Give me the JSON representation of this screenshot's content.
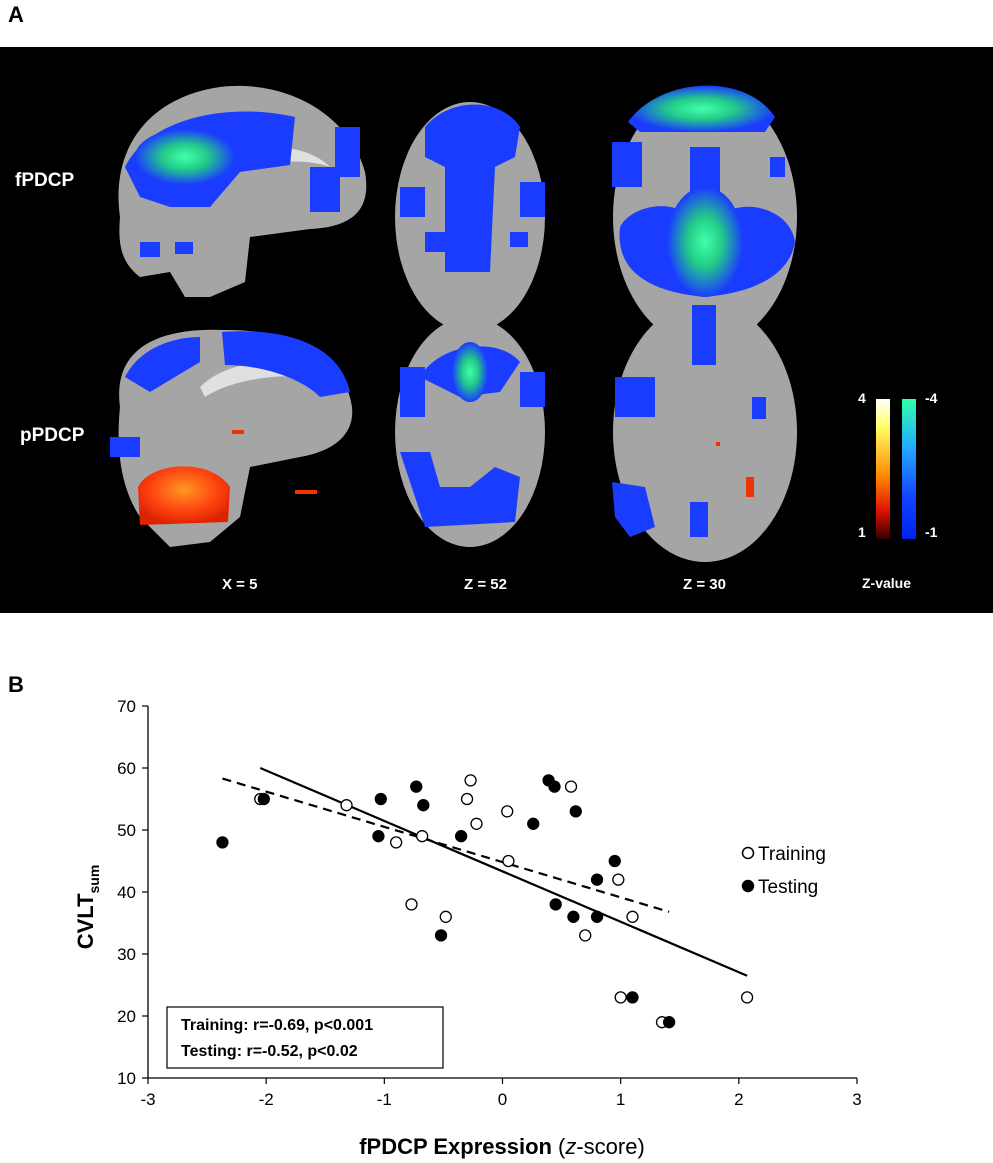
{
  "panel_a": {
    "label": "A",
    "row_labels": [
      "fPDCP",
      "pPDCP"
    ],
    "coord_labels": [
      "X = 5",
      "Z = 52",
      "Z = 30"
    ],
    "colorbar": {
      "pos_max": "4",
      "pos_min": "1",
      "neg_max": "-4",
      "neg_min": "-1",
      "title": "Z-value",
      "pos_colors": [
        "#ffffff",
        "#ffff66",
        "#ff8800",
        "#dd1100",
        "#330000"
      ],
      "neg_colors": [
        "#33ffaa",
        "#22aaff",
        "#1144ff",
        "#0022ee"
      ]
    },
    "colors": {
      "background": "#000000",
      "brain": "#a0a0a0",
      "blue": "#1a3cff",
      "green": "#33ee99",
      "red": "#ee3300"
    }
  },
  "panel_b": {
    "label": "B",
    "legend": {
      "training": "Training",
      "testing": "Testing"
    },
    "stats": [
      "Training: r=-0.69, p<0.001",
      "Testing: r=-0.52, p<0.02"
    ]
  },
  "chart_data": {
    "type": "scatter",
    "xlabel_main": "fPDCP Expression",
    "xlabel_paren_open": "(",
    "xlabel_italic": "z",
    "xlabel_suffix": "-score)",
    "ylabel_main": "CVLT",
    "ylabel_sub": "sum",
    "xlim": [
      -3,
      3
    ],
    "ylim": [
      10,
      70
    ],
    "xticks": [
      "-3",
      "-2",
      "-1",
      "0",
      "1",
      "2",
      "3"
    ],
    "yticks": [
      "10",
      "20",
      "30",
      "40",
      "50",
      "60",
      "70"
    ],
    "grid": false,
    "legend_position": "right",
    "series": [
      {
        "name": "Training",
        "marker": "open-circle",
        "points": [
          [
            -2.05,
            55
          ],
          [
            -1.32,
            54
          ],
          [
            -0.9,
            48
          ],
          [
            -0.68,
            49
          ],
          [
            -0.77,
            38
          ],
          [
            -0.48,
            36
          ],
          [
            -0.3,
            55
          ],
          [
            -0.27,
            58
          ],
          [
            -0.22,
            51
          ],
          [
            0.04,
            53
          ],
          [
            0.05,
            45
          ],
          [
            0.58,
            57
          ],
          [
            0.7,
            33
          ],
          [
            0.98,
            42
          ],
          [
            1.0,
            23
          ],
          [
            1.1,
            36
          ],
          [
            1.35,
            19
          ],
          [
            2.07,
            23
          ]
        ]
      },
      {
        "name": "Testing",
        "marker": "filled-circle",
        "points": [
          [
            -2.37,
            48
          ],
          [
            -2.02,
            55
          ],
          [
            -1.03,
            55
          ],
          [
            -1.05,
            49
          ],
          [
            -0.73,
            57
          ],
          [
            -0.67,
            54
          ],
          [
            -0.52,
            33
          ],
          [
            -0.35,
            49
          ],
          [
            0.26,
            51
          ],
          [
            0.39,
            58
          ],
          [
            0.44,
            57
          ],
          [
            0.45,
            38
          ],
          [
            0.6,
            36
          ],
          [
            0.62,
            53
          ],
          [
            0.8,
            42
          ],
          [
            0.8,
            36
          ],
          [
            0.95,
            45
          ],
          [
            1.1,
            23
          ],
          [
            1.41,
            19
          ]
        ]
      }
    ],
    "fit_lines": [
      {
        "series": "Training",
        "style": "solid",
        "x": [
          -2.05,
          2.07
        ],
        "y": [
          60,
          26.5
        ]
      },
      {
        "series": "Testing",
        "style": "dashed",
        "x": [
          -2.37,
          1.41
        ],
        "y": [
          58.3,
          36.8
        ]
      }
    ]
  }
}
